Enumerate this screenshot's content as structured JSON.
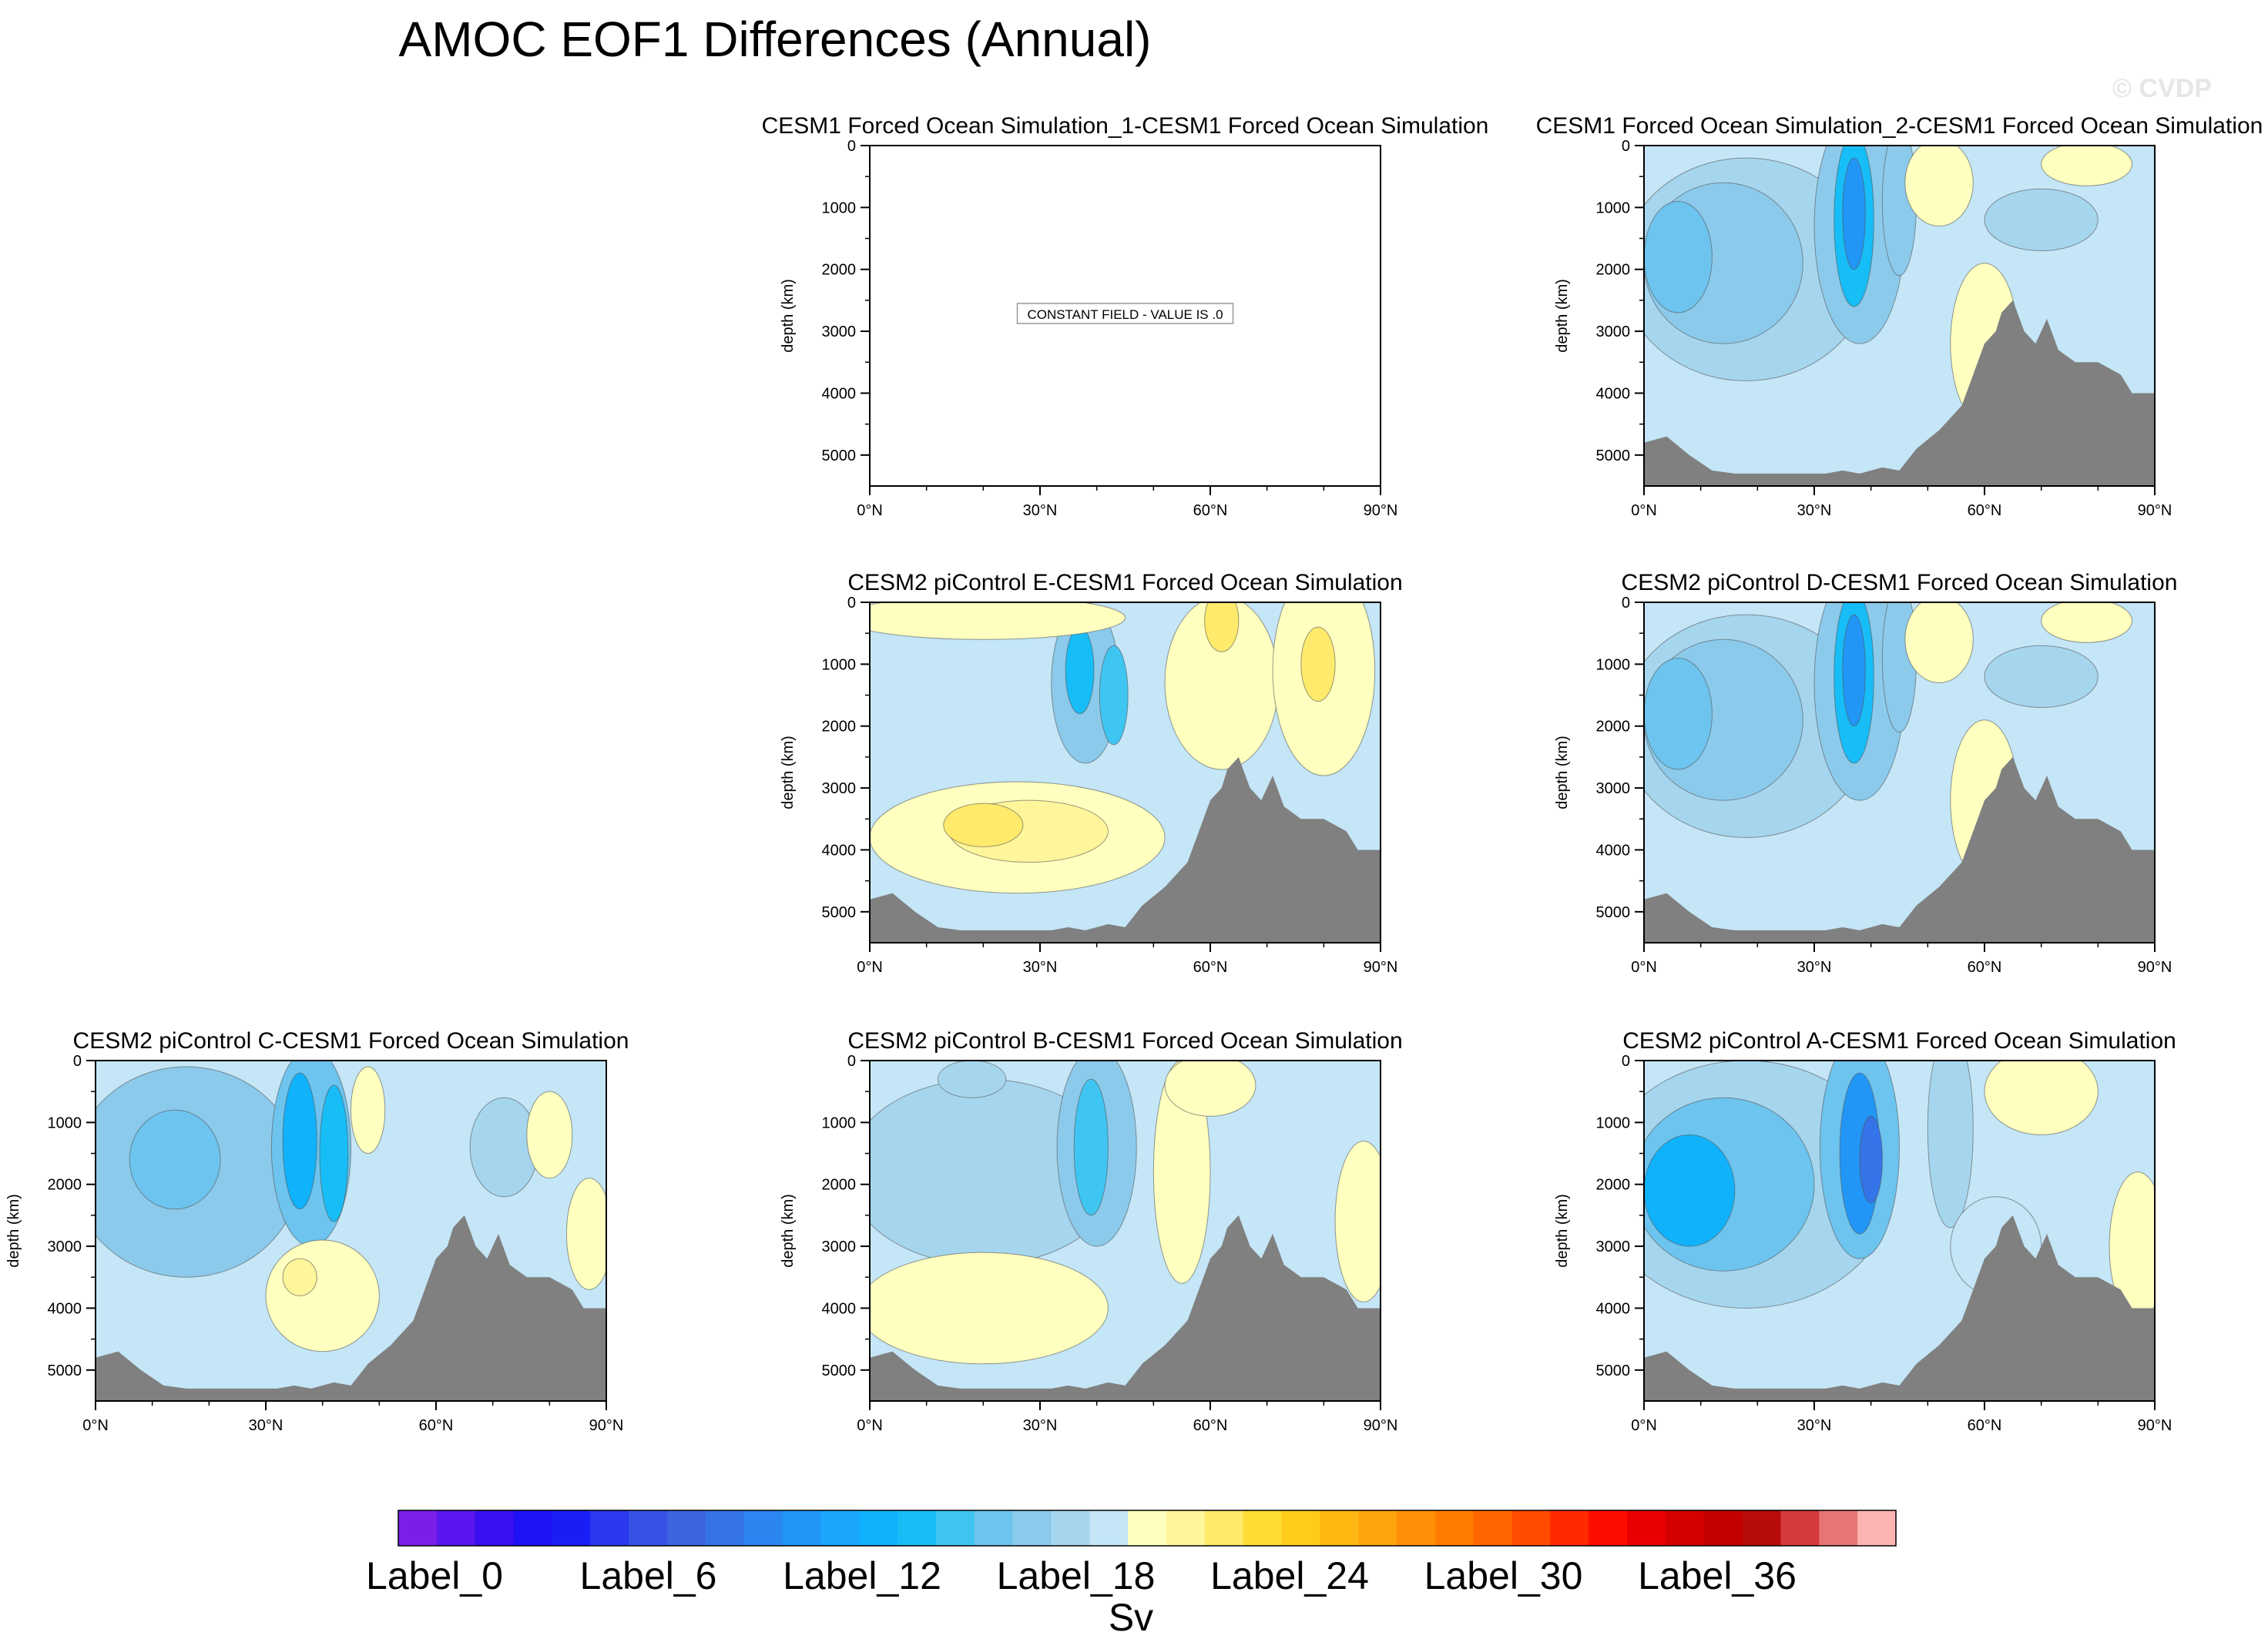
{
  "title": "AMOC EOF1 Differences (Annual)",
  "watermark": "© CVDP",
  "chart_data": [
    {
      "type": "heatmap",
      "title": "CESM1 Forced Ocean Simulation_1-CESM1 Forced Ocean Simulation",
      "ylabel": "depth (km)",
      "xticks": [
        "0°N",
        "30°N",
        "60°N",
        "90°N"
      ],
      "yticks": [
        "0",
        "1000",
        "2000",
        "3000",
        "4000",
        "5000"
      ],
      "xlim": [
        0,
        90
      ],
      "ylim": [
        5500,
        0
      ],
      "annotation": "CONSTANT FIELD - VALUE IS .0",
      "field": "constant",
      "value": 0
    },
    {
      "type": "heatmap",
      "title": "CESM1 Forced Ocean Simulation_2-CESM1 Forced Ocean Simulation",
      "ylabel": "depth (km)",
      "xticks": [
        "0°N",
        "30°N",
        "60°N",
        "90°N"
      ],
      "yticks": [
        "0",
        "1000",
        "2000",
        "3000",
        "4000",
        "5000"
      ],
      "xlim": [
        0,
        90
      ],
      "ylim": [
        5500,
        0
      ],
      "pattern": "mostly-negative"
    },
    {
      "type": "heatmap",
      "title": "CESM2 piControl E-CESM1 Forced Ocean Simulation",
      "ylabel": "depth (km)",
      "xticks": [
        "0°N",
        "30°N",
        "60°N",
        "90°N"
      ],
      "yticks": [
        "0",
        "1000",
        "2000",
        "3000",
        "4000",
        "5000"
      ],
      "xlim": [
        0,
        90
      ],
      "ylim": [
        5500,
        0
      ],
      "pattern": "positive-deep"
    },
    {
      "type": "heatmap",
      "title": "CESM2 piControl D-CESM1 Forced Ocean Simulation",
      "ylabel": "depth (km)",
      "xticks": [
        "0°N",
        "30°N",
        "60°N",
        "90°N"
      ],
      "yticks": [
        "0",
        "1000",
        "2000",
        "3000",
        "4000",
        "5000"
      ],
      "xlim": [
        0,
        90
      ],
      "ylim": [
        5500,
        0
      ],
      "pattern": "mostly-negative"
    },
    {
      "type": "heatmap",
      "title": "CESM2 piControl C-CESM1 Forced Ocean Simulation",
      "ylabel": "depth (km)",
      "xticks": [
        "0°N",
        "30°N",
        "60°N",
        "90°N"
      ],
      "yticks": [
        "0",
        "1000",
        "2000",
        "3000",
        "4000",
        "5000"
      ],
      "xlim": [
        0,
        90
      ],
      "ylim": [
        5500,
        0
      ],
      "pattern": "negative-with-yellow"
    },
    {
      "type": "heatmap",
      "title": "CESM2 piControl B-CESM1 Forced Ocean Simulation",
      "ylabel": "depth (km)",
      "xticks": [
        "0°N",
        "30°N",
        "60°N",
        "90°N"
      ],
      "yticks": [
        "0",
        "1000",
        "2000",
        "3000",
        "4000",
        "5000"
      ],
      "xlim": [
        0,
        90
      ],
      "ylim": [
        5500,
        0
      ],
      "pattern": "weak-negative"
    },
    {
      "type": "heatmap",
      "title": "CESM2 piControl A-CESM1 Forced Ocean Simulation",
      "ylabel": "depth (km)",
      "xticks": [
        "0°N",
        "30°N",
        "60°N",
        "90°N"
      ],
      "yticks": [
        "0",
        "1000",
        "2000",
        "3000",
        "4000",
        "5000"
      ],
      "xlim": [
        0,
        90
      ],
      "ylim": [
        5500,
        0
      ],
      "pattern": "strong-negative"
    }
  ],
  "bathymetry": [
    [
      0,
      4800
    ],
    [
      4,
      4700
    ],
    [
      8,
      5000
    ],
    [
      12,
      5250
    ],
    [
      16,
      5300
    ],
    [
      20,
      5300
    ],
    [
      24,
      5300
    ],
    [
      28,
      5300
    ],
    [
      32,
      5300
    ],
    [
      35,
      5250
    ],
    [
      38,
      5300
    ],
    [
      42,
      5200
    ],
    [
      45,
      5250
    ],
    [
      48,
      4900
    ],
    [
      52,
      4600
    ],
    [
      56,
      4200
    ],
    [
      58,
      3700
    ],
    [
      60,
      3200
    ],
    [
      62,
      3000
    ],
    [
      63,
      2700
    ],
    [
      65,
      2500
    ],
    [
      67,
      3000
    ],
    [
      69,
      3200
    ],
    [
      71,
      2800
    ],
    [
      73,
      3300
    ],
    [
      76,
      3500
    ],
    [
      80,
      3500
    ],
    [
      84,
      3700
    ],
    [
      86,
      4000
    ],
    [
      90,
      4000
    ]
  ],
  "colorbar": {
    "unit": "Sv",
    "labels": [
      "Label_0",
      "Label_6",
      "Label_12",
      "Label_18",
      "Label_24",
      "Label_30",
      "Label_36"
    ],
    "colors": [
      "#7b1fe8",
      "#5a16ee",
      "#3a0ff2",
      "#1f12f5",
      "#1a1ef6",
      "#2a38ee",
      "#3552e4",
      "#3c64de",
      "#3474e8",
      "#2b86f2",
      "#2196f7",
      "#1aa6fa",
      "#10b2fc",
      "#17bdf7",
      "#3fc5f2",
      "#6dc4ee",
      "#8ccaeb",
      "#a6d6ee",
      "#c4e6f7",
      "#ffffc0",
      "#fff59a",
      "#ffea6b",
      "#ffdd33",
      "#ffcc1a",
      "#ffb812",
      "#ffa40c",
      "#ff9006",
      "#ff7c00",
      "#ff6600",
      "#ff4c00",
      "#ff2a00",
      "#ff0c00",
      "#e80000",
      "#d40000",
      "#c20000",
      "#b80c0c",
      "#d43a3a",
      "#e87474",
      "#ffb4b4"
    ]
  }
}
